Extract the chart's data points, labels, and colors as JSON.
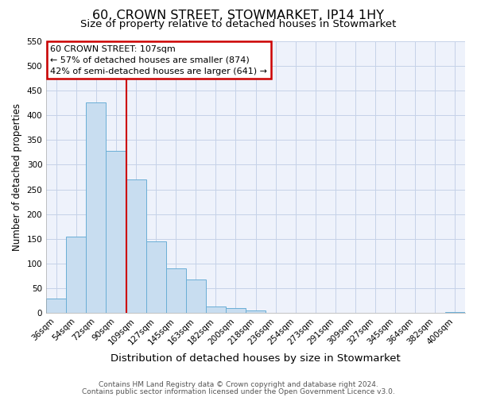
{
  "title": "60, CROWN STREET, STOWMARKET, IP14 1HY",
  "subtitle": "Size of property relative to detached houses in Stowmarket",
  "xlabel": "Distribution of detached houses by size in Stowmarket",
  "ylabel": "Number of detached properties",
  "bar_labels": [
    "36sqm",
    "54sqm",
    "72sqm",
    "90sqm",
    "109sqm",
    "127sqm",
    "145sqm",
    "163sqm",
    "182sqm",
    "200sqm",
    "218sqm",
    "236sqm",
    "254sqm",
    "273sqm",
    "291sqm",
    "309sqm",
    "327sqm",
    "345sqm",
    "364sqm",
    "382sqm",
    "400sqm"
  ],
  "bar_values": [
    29,
    155,
    425,
    328,
    270,
    145,
    91,
    68,
    13,
    10,
    5,
    0,
    0,
    0,
    0,
    0,
    0,
    0,
    0,
    0,
    3
  ],
  "bar_color": "#c8ddf0",
  "bar_edge_color": "#6aaed6",
  "vline_x_index": 4,
  "vline_color": "#cc0000",
  "ylim_max": 550,
  "yticks": [
    0,
    50,
    100,
    150,
    200,
    250,
    300,
    350,
    400,
    450,
    500,
    550
  ],
  "annotation_title": "60 CROWN STREET: 107sqm",
  "annotation_line1": "← 57% of detached houses are smaller (874)",
  "annotation_line2": "42% of semi-detached houses are larger (641) →",
  "annotation_box_color": "#cc0000",
  "footer_line1": "Contains HM Land Registry data © Crown copyright and database right 2024.",
  "footer_line2": "Contains public sector information licensed under the Open Government Licence v3.0.",
  "background_color": "#eef2fb",
  "grid_color": "#c5d2e8",
  "title_fontsize": 11.5,
  "subtitle_fontsize": 9.5,
  "xlabel_fontsize": 9.5,
  "ylabel_fontsize": 8.5,
  "tick_fontsize": 7.5,
  "footer_fontsize": 6.5
}
